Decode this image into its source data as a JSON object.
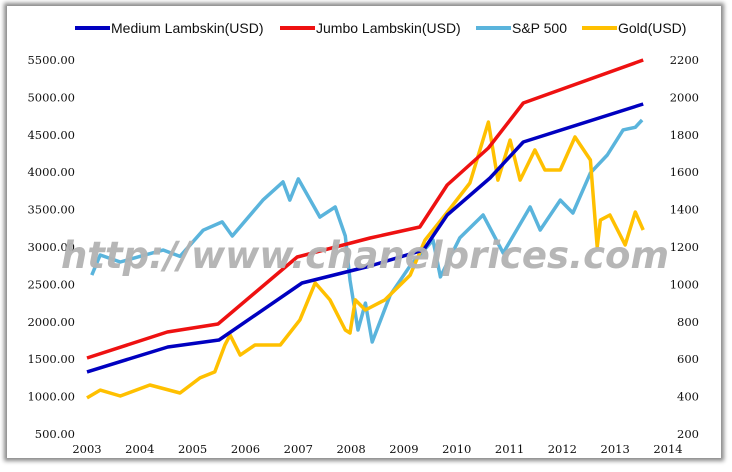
{
  "chart_data": {
    "type": "line",
    "title": "",
    "watermark": "http://www.chanelprices.com",
    "legend_position": "top",
    "grid": false,
    "x_axis": {
      "range": [
        2003,
        2014
      ],
      "ticks": [
        "2003",
        "2004",
        "2005",
        "2006",
        "2007",
        "2008",
        "2009",
        "2010",
        "2011",
        "2012",
        "2013",
        "2014"
      ]
    },
    "y_left": {
      "range": [
        500,
        5500
      ],
      "ticks": [
        "500.00",
        "1000.00",
        "1500.00",
        "2000.00",
        "2500.00",
        "3000.00",
        "3500.00",
        "4000.00",
        "4500.00",
        "5000.00",
        "5500.00"
      ]
    },
    "y_right": {
      "range": [
        200,
        2200
      ],
      "ticks": [
        "200",
        "400",
        "600",
        "800",
        "1000",
        "1200",
        "1400",
        "1600",
        "1800",
        "2000",
        "2200"
      ]
    },
    "series": [
      {
        "name": "Medium Lambskin(USD)",
        "color": "#0000c0",
        "axis": "left",
        "points": [
          [
            2003.0,
            1330
          ],
          [
            2004.53,
            1663
          ],
          [
            2005.5,
            1757
          ],
          [
            2007.07,
            2519
          ],
          [
            2008.36,
            2746
          ],
          [
            2009.37,
            2960
          ],
          [
            2009.82,
            3428
          ],
          [
            2010.63,
            3923
          ],
          [
            2011.26,
            4404
          ],
          [
            2013.53,
            4912
          ]
        ]
      },
      {
        "name": "Jumbo Lambskin(USD)",
        "color": "#ee1111",
        "axis": "left",
        "points": [
          [
            2003.0,
            1516
          ],
          [
            2004.52,
            1864
          ],
          [
            2005.48,
            1971
          ],
          [
            2006.98,
            2866
          ],
          [
            2008.36,
            3120
          ],
          [
            2009.3,
            3268
          ],
          [
            2009.82,
            3829
          ],
          [
            2010.6,
            4324
          ],
          [
            2011.26,
            4925
          ],
          [
            2013.53,
            5500
          ]
        ]
      },
      {
        "name": "S&P 500",
        "color": "#5ab4dc",
        "axis": "right",
        "points": [
          [
            2003.09,
            1050
          ],
          [
            2003.25,
            1157
          ],
          [
            2003.63,
            1120
          ],
          [
            2004.0,
            1150
          ],
          [
            2004.44,
            1184
          ],
          [
            2004.76,
            1150
          ],
          [
            2005.2,
            1290
          ],
          [
            2005.56,
            1334
          ],
          [
            2005.75,
            1259
          ],
          [
            2006.33,
            1451
          ],
          [
            2006.71,
            1548
          ],
          [
            2006.84,
            1451
          ],
          [
            2007.0,
            1564
          ],
          [
            2007.41,
            1360
          ],
          [
            2007.7,
            1414
          ],
          [
            2007.89,
            1259
          ],
          [
            2007.98,
            1023
          ],
          [
            2008.13,
            756
          ],
          [
            2008.27,
            900
          ],
          [
            2008.4,
            692
          ],
          [
            2008.74,
            943
          ],
          [
            2009.12,
            1100
          ],
          [
            2009.55,
            1237
          ],
          [
            2009.69,
            1040
          ],
          [
            2010.06,
            1250
          ],
          [
            2010.5,
            1371
          ],
          [
            2010.88,
            1168
          ],
          [
            2011.39,
            1414
          ],
          [
            2011.58,
            1291
          ],
          [
            2011.96,
            1451
          ],
          [
            2012.2,
            1382
          ],
          [
            2012.53,
            1596
          ],
          [
            2012.85,
            1692
          ],
          [
            2013.15,
            1826
          ],
          [
            2013.38,
            1840
          ],
          [
            2013.51,
            1879
          ]
        ]
      },
      {
        "name": "Gold(USD)",
        "color": "#ffc000",
        "axis": "right",
        "points": [
          [
            2003.0,
            393
          ],
          [
            2003.25,
            435
          ],
          [
            2003.63,
            403
          ],
          [
            2004.19,
            462
          ],
          [
            2004.76,
            419
          ],
          [
            2005.14,
            500
          ],
          [
            2005.42,
            532
          ],
          [
            2005.61,
            676
          ],
          [
            2005.71,
            729
          ],
          [
            2005.9,
            622
          ],
          [
            2006.18,
            676
          ],
          [
            2006.66,
            676
          ],
          [
            2007.03,
            810
          ],
          [
            2007.32,
            1008
          ],
          [
            2007.6,
            917
          ],
          [
            2007.89,
            756
          ],
          [
            2007.98,
            740
          ],
          [
            2008.08,
            917
          ],
          [
            2008.27,
            863
          ],
          [
            2008.64,
            917
          ],
          [
            2009.12,
            1050
          ],
          [
            2009.4,
            1237
          ],
          [
            2009.78,
            1371
          ],
          [
            2010.25,
            1542
          ],
          [
            2010.6,
            1868
          ],
          [
            2010.78,
            1558
          ],
          [
            2011.01,
            1772
          ],
          [
            2011.2,
            1558
          ],
          [
            2011.48,
            1719
          ],
          [
            2011.67,
            1612
          ],
          [
            2011.96,
            1612
          ],
          [
            2012.24,
            1788
          ],
          [
            2012.53,
            1665
          ],
          [
            2012.66,
            1200
          ],
          [
            2012.72,
            1344
          ],
          [
            2012.9,
            1371
          ],
          [
            2013.19,
            1211
          ],
          [
            2013.38,
            1387
          ],
          [
            2013.53,
            1291
          ]
        ]
      }
    ]
  }
}
